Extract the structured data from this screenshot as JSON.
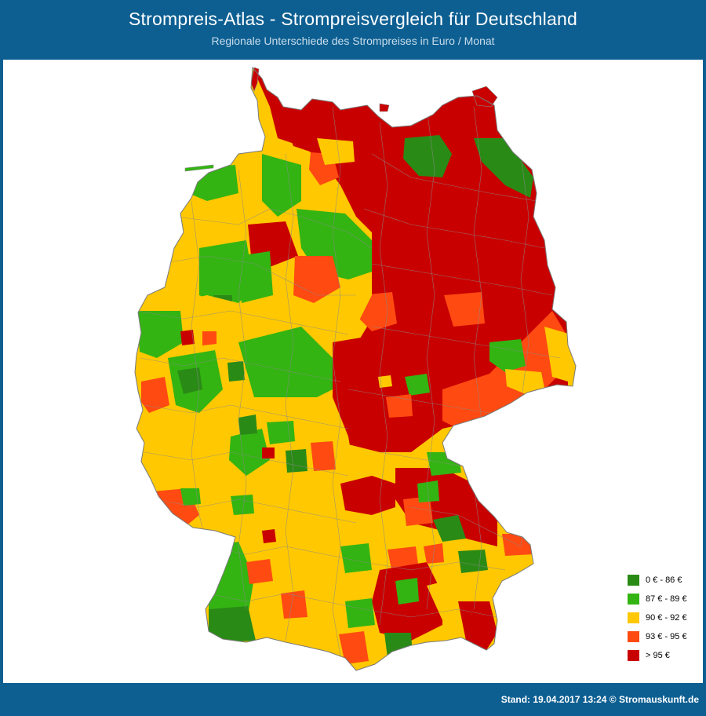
{
  "header": {
    "title": "Strompreis-Atlas - Strompreisvergleich für Deutschland",
    "subtitle": "Regionale Unterschiede des Strompreises in Euro / Monat"
  },
  "legend": [
    {
      "label": "0 € - 86 €",
      "color": "#2a8a16"
    },
    {
      "label": "87 € - 89 €",
      "color": "#33b412"
    },
    {
      "label": "90 € - 92 €",
      "color": "#ffc800"
    },
    {
      "label": "93 € - 95 €",
      "color": "#ff4a12"
    },
    {
      "label": "> 95 €",
      "color": "#c90000"
    }
  ],
  "colors": {
    "frame": "#0d5f92",
    "border": "#8a8a8a"
  },
  "footer": {
    "stand": "Stand: 19.04.2017 13:24 © Stromauskunft.de"
  }
}
